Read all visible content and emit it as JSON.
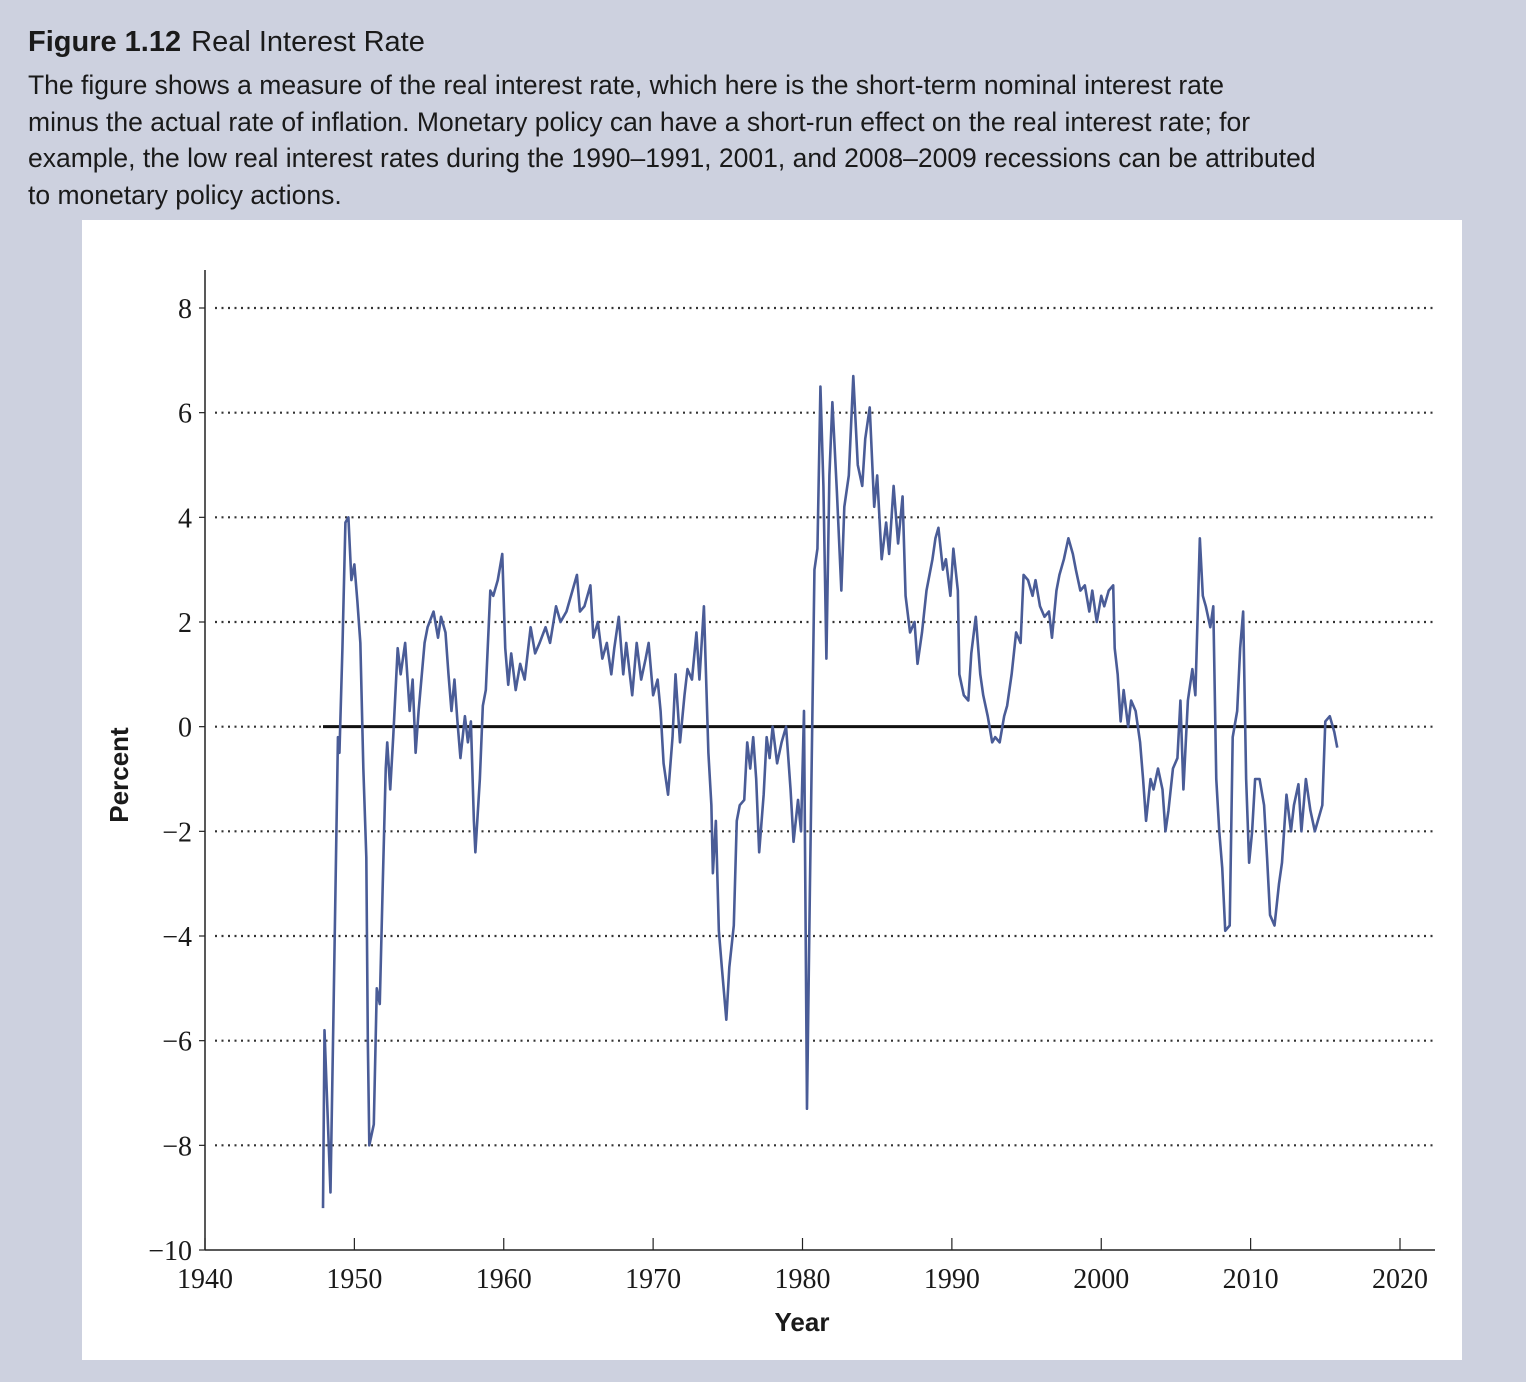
{
  "chart_data": {
    "type": "line",
    "figure_number": "Figure 1.12",
    "title": "Real Interest Rate",
    "caption": [
      "The figure shows a measure of the real interest rate, which here is the short-term nominal interest rate",
      "minus the actual rate of inflation. Monetary policy can have a short-run effect on the real interest rate; for",
      "example, the low real interest rates during the 1990–1991, 2001, and 2008–2009 recessions can be attributed",
      "to monetary policy actions."
    ],
    "xlabel": "Year",
    "ylabel": "Percent",
    "xlim": [
      1940,
      2020
    ],
    "xticks": [
      1940,
      1950,
      1960,
      1970,
      1980,
      1990,
      2000,
      2010,
      2020
    ],
    "ylim": [
      -10,
      8
    ],
    "yticks": [
      {
        "value": -10,
        "label": "−10"
      },
      {
        "value": -8,
        "label": "−8"
      },
      {
        "value": -6,
        "label": "−6"
      },
      {
        "value": -4,
        "label": "−4"
      },
      {
        "value": -2,
        "label": "−2"
      },
      0,
      2,
      4,
      6,
      8
    ],
    "grid": true,
    "hline": 0,
    "x": [
      1947.9,
      1948.0,
      1948.4,
      1948.6,
      1948.9,
      1949.0,
      1949.2,
      1949.4,
      1949.6,
      1949.8,
      1950.0,
      1950.2,
      1950.4,
      1950.6,
      1950.8,
      1950.9,
      1951.0,
      1951.3,
      1951.5,
      1951.7,
      1951.9,
      1952.1,
      1952.2,
      1952.4,
      1952.6,
      1952.9,
      1953.1,
      1953.4,
      1953.7,
      1953.9,
      1954.1,
      1954.3,
      1954.7,
      1954.9,
      1955.3,
      1955.6,
      1955.8,
      1956.1,
      1956.3,
      1956.5,
      1956.7,
      1956.9,
      1957.1,
      1957.4,
      1957.6,
      1957.8,
      1958.0,
      1958.1,
      1958.4,
      1958.6,
      1958.8,
      1959.1,
      1959.3,
      1959.6,
      1959.9,
      1960.1,
      1960.3,
      1960.5,
      1960.8,
      1961.1,
      1961.4,
      1961.8,
      1962.1,
      1962.4,
      1962.8,
      1963.1,
      1963.5,
      1963.8,
      1964.2,
      1964.6,
      1964.9,
      1965.1,
      1965.4,
      1965.8,
      1966.0,
      1966.3,
      1966.6,
      1966.9,
      1967.2,
      1967.4,
      1967.7,
      1968.0,
      1968.2,
      1968.6,
      1968.9,
      1969.2,
      1969.5,
      1969.7,
      1970.0,
      1970.3,
      1970.5,
      1970.7,
      1971.0,
      1971.3,
      1971.5,
      1971.8,
      1972.1,
      1972.3,
      1972.6,
      1972.9,
      1973.1,
      1973.4,
      1973.7,
      1973.9,
      1974.0,
      1974.2,
      1974.4,
      1974.6,
      1974.9,
      1975.1,
      1975.4,
      1975.6,
      1975.8,
      1976.1,
      1976.3,
      1976.5,
      1976.7,
      1976.9,
      1977.1,
      1977.4,
      1977.6,
      1977.8,
      1978.0,
      1978.3,
      1978.6,
      1978.9,
      1979.2,
      1979.4,
      1979.7,
      1979.9,
      1980.1,
      1980.3,
      1980.5,
      1980.8,
      1981.0,
      1981.2,
      1981.4,
      1981.6,
      1981.8,
      1982.0,
      1982.3,
      1982.6,
      1982.8,
      1983.1,
      1983.4,
      1983.7,
      1984.0,
      1984.2,
      1984.5,
      1984.8,
      1985.0,
      1985.3,
      1985.6,
      1985.8,
      1986.1,
      1986.4,
      1986.7,
      1986.9,
      1987.2,
      1987.5,
      1987.7,
      1988.0,
      1988.3,
      1988.7,
      1988.9,
      1989.1,
      1989.4,
      1989.6,
      1989.9,
      1990.1,
      1990.4,
      1990.5,
      1990.8,
      1991.1,
      1991.3,
      1991.6,
      1991.9,
      1992.1,
      1992.4,
      1992.7,
      1992.9,
      1993.2,
      1993.5,
      1993.7,
      1994.0,
      1994.3,
      1994.6,
      1994.8,
      1995.1,
      1995.4,
      1995.6,
      1995.9,
      1996.2,
      1996.5,
      1996.7,
      1997.0,
      1997.2,
      1997.5,
      1997.8,
      1998.1,
      1998.3,
      1998.6,
      1998.9,
      1999.2,
      1999.4,
      1999.7,
      2000.0,
      2000.2,
      2000.5,
      2000.8,
      2000.9,
      2001.1,
      2001.3,
      2001.5,
      2001.8,
      2002.0,
      2002.3,
      2002.6,
      2002.8,
      2003.0,
      2003.3,
      2003.5,
      2003.8,
      2004.1,
      2004.3,
      2004.5,
      2004.8,
      2005.1,
      2005.3,
      2005.5,
      2005.8,
      2006.1,
      2006.3,
      2006.6,
      2006.8,
      2007.0,
      2007.3,
      2007.5,
      2007.7,
      2007.9,
      2008.1,
      2008.3,
      2008.6,
      2008.8,
      2009.1,
      2009.3,
      2009.5,
      2009.7,
      2009.9,
      2010.1,
      2010.3,
      2010.6,
      2010.9,
      2011.1,
      2011.3,
      2011.6,
      2011.9,
      2012.1,
      2012.4,
      2012.7,
      2012.9,
      2013.2,
      2013.4,
      2013.7,
      2014.0,
      2014.3,
      2014.5,
      2014.8,
      2015.0,
      2015.3,
      2015.6,
      2015.8
    ],
    "series": [
      {
        "color": "#4a5c97",
        "values": [
          -9.2,
          -5.8,
          -8.9,
          -5.5,
          -0.2,
          -0.5,
          1.5,
          3.9,
          4.0,
          2.8,
          3.1,
          2.4,
          1.6,
          -0.8,
          -2.5,
          -6.0,
          -8.0,
          -7.6,
          -5.0,
          -5.3,
          -3.0,
          -0.8,
          -0.3,
          -1.2,
          -0.2,
          1.5,
          1.0,
          1.6,
          0.3,
          0.9,
          -0.5,
          0.3,
          1.6,
          1.9,
          2.2,
          1.7,
          2.1,
          1.8,
          1.0,
          0.3,
          0.9,
          0.1,
          -0.6,
          0.2,
          -0.3,
          0.1,
          -1.8,
          -2.4,
          -1.0,
          0.4,
          0.7,
          2.6,
          2.5,
          2.8,
          3.3,
          1.5,
          0.8,
          1.4,
          0.7,
          1.2,
          0.9,
          1.9,
          1.4,
          1.6,
          1.9,
          1.6,
          2.3,
          2.0,
          2.2,
          2.6,
          2.9,
          2.2,
          2.3,
          2.7,
          1.7,
          2.0,
          1.3,
          1.6,
          1.0,
          1.5,
          2.1,
          1.0,
          1.6,
          0.6,
          1.6,
          0.9,
          1.3,
          1.6,
          0.6,
          0.9,
          0.3,
          -0.7,
          -1.3,
          -0.2,
          1.0,
          -0.3,
          0.6,
          1.1,
          0.9,
          1.8,
          0.9,
          2.3,
          -0.5,
          -1.5,
          -2.8,
          -1.8,
          -3.9,
          -4.6,
          -5.6,
          -4.6,
          -3.8,
          -1.8,
          -1.5,
          -1.4,
          -0.3,
          -0.8,
          -0.2,
          -1.0,
          -2.4,
          -1.3,
          -0.2,
          -0.6,
          0.0,
          -0.7,
          -0.3,
          0.0,
          -1.2,
          -2.2,
          -1.4,
          -2.0,
          0.3,
          -7.3,
          -3.0,
          3.0,
          3.4,
          6.5,
          4.6,
          1.3,
          4.8,
          6.2,
          4.5,
          2.6,
          4.2,
          4.8,
          6.7,
          5.0,
          4.6,
          5.5,
          6.1,
          4.2,
          4.8,
          3.2,
          3.9,
          3.3,
          4.6,
          3.5,
          4.4,
          2.5,
          1.8,
          2.0,
          1.2,
          1.8,
          2.6,
          3.2,
          3.6,
          3.8,
          3.0,
          3.2,
          2.5,
          3.4,
          2.6,
          1.0,
          0.6,
          0.5,
          1.4,
          2.1,
          1.0,
          0.6,
          0.2,
          -0.3,
          -0.2,
          -0.3,
          0.2,
          0.4,
          1.0,
          1.8,
          1.6,
          2.9,
          2.8,
          2.5,
          2.8,
          2.3,
          2.1,
          2.2,
          1.7,
          2.6,
          2.9,
          3.2,
          3.6,
          3.3,
          3.0,
          2.6,
          2.7,
          2.2,
          2.6,
          2.0,
          2.5,
          2.3,
          2.6,
          2.7,
          1.5,
          1.0,
          0.1,
          0.7,
          0.0,
          0.5,
          0.3,
          -0.3,
          -1.0,
          -1.8,
          -1.0,
          -1.2,
          -0.8,
          -1.2,
          -2.0,
          -1.6,
          -0.8,
          -0.6,
          0.5,
          -1.2,
          0.5,
          1.1,
          0.6,
          3.6,
          2.5,
          2.3,
          1.9,
          2.3,
          -1.0,
          -2.0,
          -2.7,
          -3.9,
          -3.8,
          -0.2,
          0.3,
          1.5,
          2.2,
          -1.0,
          -2.6,
          -2.0,
          -1.0,
          -1.0,
          -1.5,
          -2.5,
          -3.6,
          -3.8,
          -3.0,
          -2.6,
          -1.3,
          -2.0,
          -1.5,
          -1.1,
          -2.0,
          -1.0,
          -1.6,
          -2.0,
          -1.8,
          -1.5,
          0.1,
          0.2,
          -0.1,
          -0.4
        ]
      }
    ]
  }
}
